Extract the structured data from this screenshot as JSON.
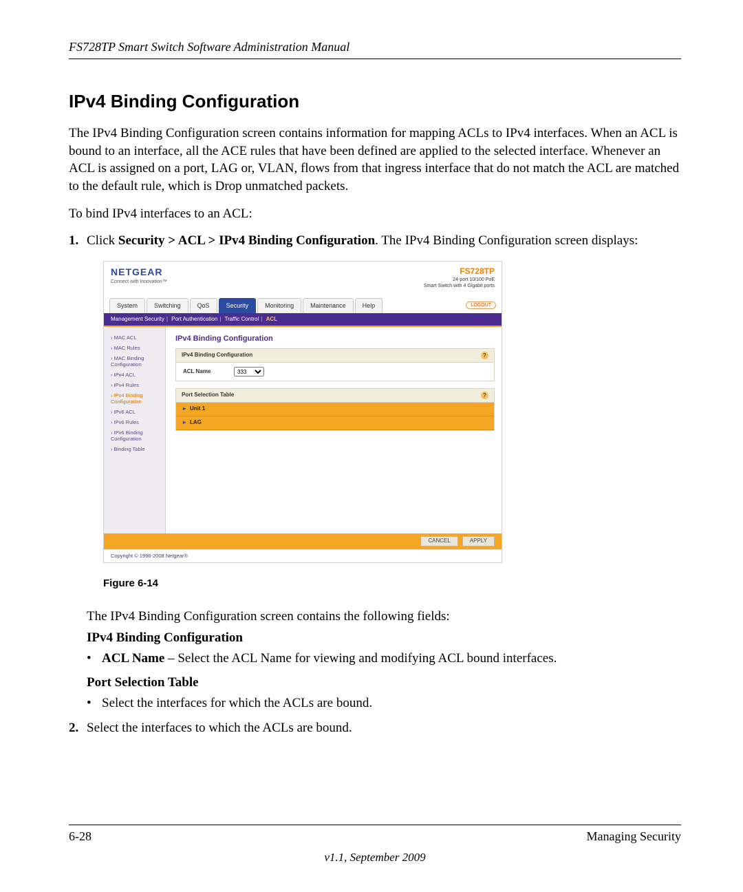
{
  "doc": {
    "header": "FS728TP Smart Switch Software Administration Manual",
    "title": "IPv4 Binding Configuration",
    "para1": "The IPv4 Binding Configuration screen contains information for mapping ACLs to IPv4 interfaces. When an ACL is bound to an interface, all the ACE rules that have been defined are applied to the selected interface. Whenever an ACL is assigned on a port, LAG or, VLAN, flows from that ingress interface that do not match the ACL are matched to the default rule, which is Drop unmatched packets.",
    "para2": "To bind IPv4 interfaces to an ACL:",
    "step1_prefix": "Click ",
    "step1_bold": "Security > ACL > IPv4 Binding Configuration",
    "step1_suffix": ". The IPv4 Binding Configuration screen displays:",
    "figure_caption": "Figure 6-14",
    "para3": "The IPv4 Binding Configuration screen contains the following fields:",
    "sub1": "IPv4 Binding Configuration",
    "bullet1_bold": "ACL Name",
    "bullet1_rest": " – Select the ACL Name for viewing and modifying ACL bound interfaces.",
    "sub2": "Port Selection Table",
    "bullet2": "Select the interfaces for which the ACLs are bound.",
    "step2": "Select the interfaces to which the ACLs are bound.",
    "footer_left": "6-28",
    "footer_right": "Managing Security",
    "footer_ver": "v1.1, September 2009"
  },
  "shot": {
    "brand": "NETGEAR",
    "brand_tag": "Connect with Innovation™",
    "model": "FS728TP",
    "model_desc1": "24-port 10/100 PoE",
    "model_desc2": "Smart Switch with 4 Gigabit ports",
    "logout": "LOGOUT",
    "tabs": [
      "System",
      "Switching",
      "QoS",
      "Security",
      "Monitoring",
      "Maintenance",
      "Help"
    ],
    "active_tab_index": 3,
    "subnav_items": [
      "Management Security",
      "Port Authentication",
      "Traffic Control",
      "ACL"
    ],
    "subnav_active_index": 3,
    "sidebar": [
      "MAC ACL",
      "MAC Rules",
      "MAC Binding Configuration",
      "IPv4 ACL",
      "IPv4 Rules",
      "IPv4 Binding Configuration",
      "IPv6 ACL",
      "IPv6 Rules",
      "IPv6 Binding Configuration",
      "Binding Table"
    ],
    "sidebar_active_index": 5,
    "content_title": "IPv4 Binding Configuration",
    "panel1_title": "IPv4 Binding Configuration",
    "panel1_label": "ACL Name",
    "panel1_option": "333",
    "panel2_title": "Port Selection Table",
    "panel2_rows": [
      "Unit 1",
      "LAG"
    ],
    "btn_cancel": "CANCEL",
    "btn_apply": "APPLY",
    "copyright": "Copyright © 1996-2008 Netgear®",
    "colors": {
      "purple": "#4a2d8f",
      "orange": "#f5a623",
      "tab_blue": "#2b4aa0",
      "logo_blue": "#2b4aa0",
      "model_orange": "#f08000"
    }
  }
}
